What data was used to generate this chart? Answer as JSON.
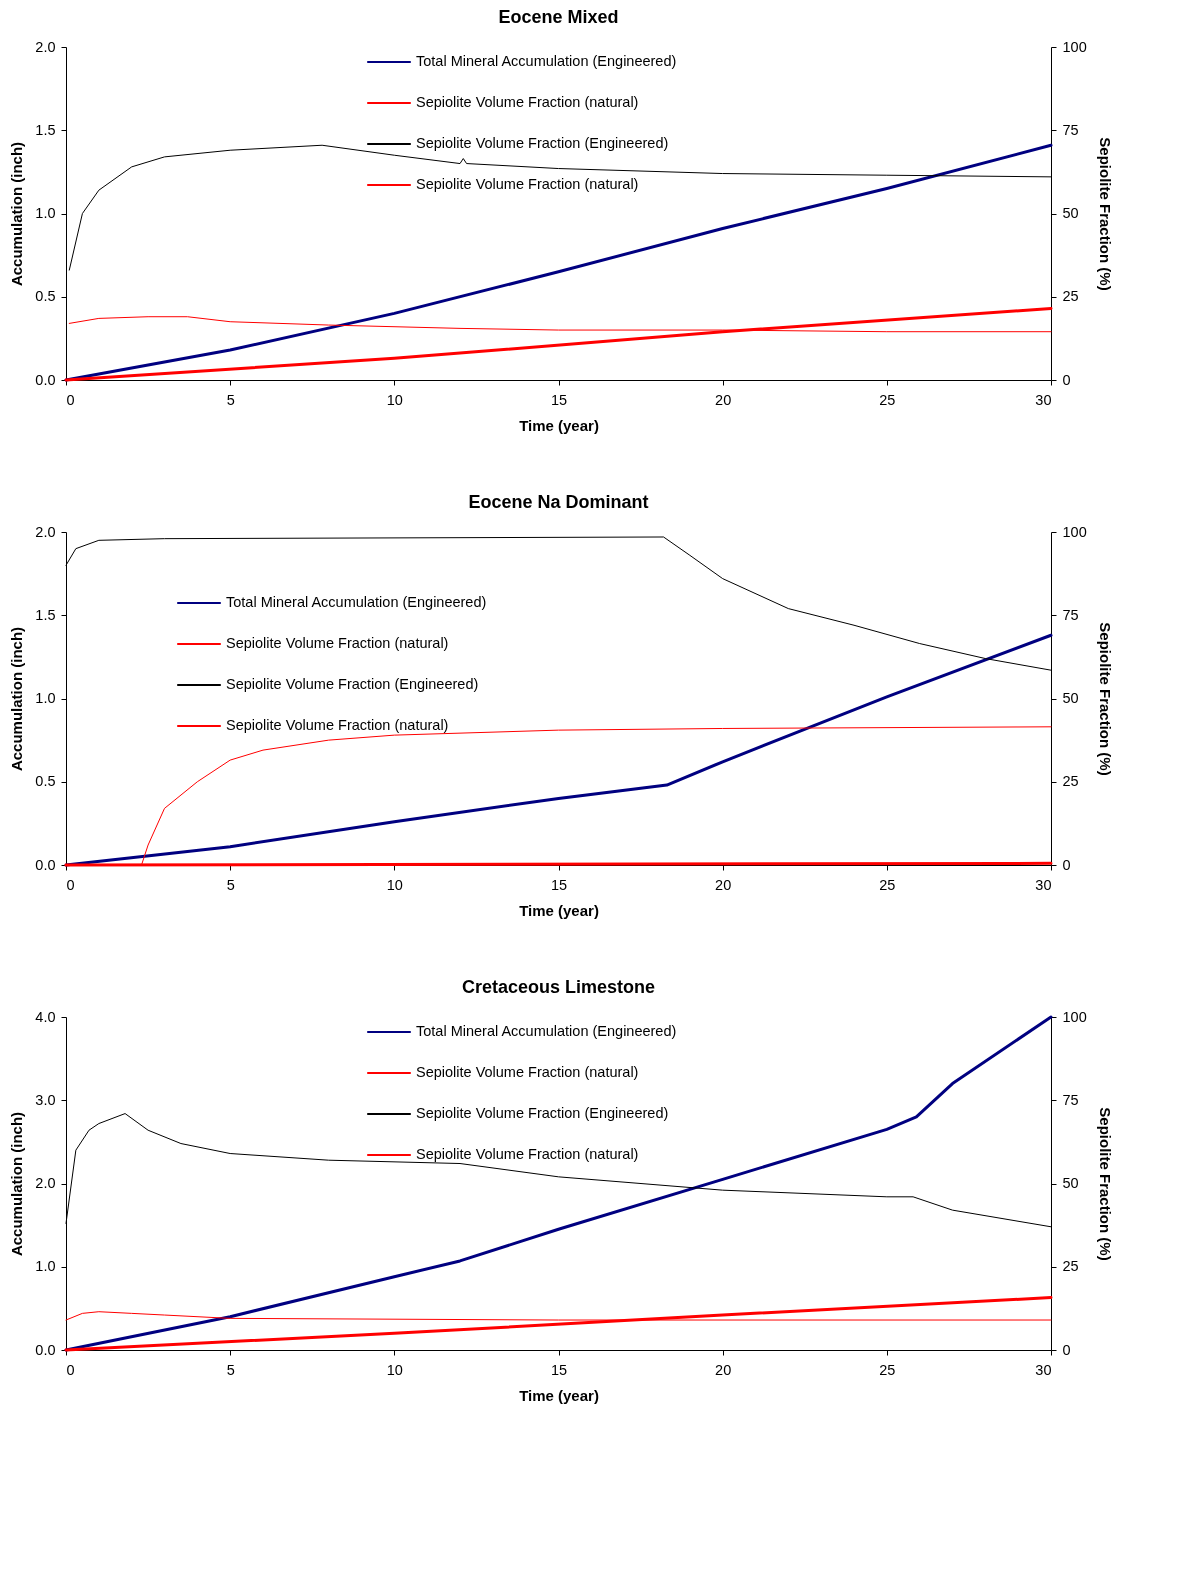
{
  "chart_data": [
    {
      "type": "line",
      "title": "Eocene Mixed",
      "xlabel": "Time (year)",
      "ylabel": "Accumulation (inch)",
      "y2label": "Sepiolite Fraction (%)",
      "legend": "top",
      "grid": false,
      "line_style": "solid",
      "marker": "none",
      "xlim": [
        0,
        30
      ],
      "xticks": [
        0,
        5,
        10,
        15,
        20,
        25,
        30
      ],
      "ylim": [
        0,
        2
      ],
      "yticks": [
        {
          "value": 0,
          "label": "0.0"
        },
        {
          "value": 0.5,
          "label": "0.5"
        },
        {
          "value": 1,
          "label": "1.0"
        },
        {
          "value": 1.5,
          "label": "1.5"
        },
        {
          "value": 2,
          "label": "2.0"
        }
      ],
      "y2lim": [
        0,
        100
      ],
      "y2ticks": [
        0,
        25,
        50,
        75,
        100
      ],
      "series": [
        {
          "name": "Total Mineral Accumulation (Engineered)",
          "color": "#000080",
          "x": [
            0,
            5,
            10,
            15,
            20,
            25,
            30
          ],
          "values": [
            0,
            0.18,
            0.4,
            0.65,
            0.91,
            1.15,
            1.41
          ]
        },
        {
          "name": "Sepiolite Volume Fraction (natural)",
          "color": "#ff0000",
          "x": [
            0,
            10,
            20,
            30
          ],
          "values": [
            0,
            0.13,
            0.29,
            0.43
          ]
        },
        {
          "name": "Sepiolite Volume Fraction (Engineered)",
          "color": "#000000",
          "axis": "y2",
          "x": [
            0.1,
            0.5,
            1,
            2,
            3,
            5,
            7.8,
            10,
            12,
            12.1,
            12.2,
            15,
            20,
            25,
            30
          ],
          "values": [
            33,
            50,
            57,
            64,
            67,
            69,
            70.5,
            67.5,
            65,
            66.5,
            65,
            63.5,
            62,
            61.5,
            61
          ]
        },
        {
          "name": "Sepiolite Volume Fraction (natural)",
          "color": "#ff0000",
          "axis": "y2",
          "x": [
            0.1,
            1,
            2.5,
            3.7,
            5,
            8,
            12,
            15,
            20,
            25,
            30
          ],
          "values": [
            17,
            18.5,
            19,
            19,
            17.5,
            16.5,
            15.5,
            15,
            15,
            14.5,
            14.5
          ]
        }
      ]
    },
    {
      "type": "line",
      "title": "Eocene Na Dominant",
      "xlabel": "Time (year)",
      "ylabel": "Accumulation (inch)",
      "y2label": "Sepiolite Fraction (%)",
      "legend": "top left",
      "grid": false,
      "line_style": "solid",
      "marker": "none",
      "xlim": [
        0,
        30
      ],
      "xticks": [
        0,
        5,
        10,
        15,
        20,
        25,
        30
      ],
      "ylim": [
        0,
        2
      ],
      "yticks": [
        {
          "value": 0,
          "label": "0.0"
        },
        {
          "value": 0.5,
          "label": "0.5"
        },
        {
          "value": 1,
          "label": "1.0"
        },
        {
          "value": 1.5,
          "label": "1.5"
        },
        {
          "value": 2,
          "label": "2.0"
        }
      ],
      "y2lim": [
        0,
        100
      ],
      "y2ticks": [
        0,
        25,
        50,
        75,
        100
      ],
      "series": [
        {
          "name": "Total Mineral Accumulation (Engineered)",
          "color": "#000080",
          "x": [
            0,
            5,
            10,
            15,
            18.3,
            20,
            25,
            30
          ],
          "values": [
            0,
            0.11,
            0.26,
            0.4,
            0.48,
            0.62,
            1.01,
            1.38
          ]
        },
        {
          "name": "Sepiolite Volume Fraction (natural)",
          "color": "#ff0000",
          "x": [
            0,
            30
          ],
          "values": [
            0,
            0.01
          ]
        },
        {
          "name": "Sepiolite Volume Fraction (Engineered)",
          "color": "#000000",
          "axis": "y2",
          "x": [
            0,
            0.3,
            1,
            3,
            18.2,
            19,
            20,
            22,
            24,
            26,
            28,
            30
          ],
          "values": [
            90,
            95,
            97.5,
            98,
            98.5,
            93,
            86,
            77,
            72,
            66.5,
            62,
            58.5
          ]
        },
        {
          "name": "Sepiolite Volume Fraction (natural)",
          "color": "#ff0000",
          "axis": "y2",
          "x": [
            0,
            2.3,
            2.5,
            3,
            4,
            5,
            6,
            8,
            10,
            15,
            20,
            30
          ],
          "values": [
            0,
            0,
            6,
            17,
            25,
            31.5,
            34.5,
            37.5,
            39,
            40.5,
            41,
            41.5
          ]
        }
      ]
    },
    {
      "type": "line",
      "title": "Cretaceous Limestone",
      "xlabel": "Time (year)",
      "ylabel": "Accumulation (inch)",
      "y2label": "Sepiolite Fraction (%)",
      "legend": "top",
      "grid": false,
      "line_style": "solid",
      "marker": "none",
      "xlim": [
        0,
        30
      ],
      "xticks": [
        0,
        5,
        10,
        15,
        20,
        25,
        30
      ],
      "ylim": [
        0,
        4
      ],
      "yticks": [
        {
          "value": 0,
          "label": "0.0"
        },
        {
          "value": 1,
          "label": "1.0"
        },
        {
          "value": 2,
          "label": "2.0"
        },
        {
          "value": 3,
          "label": "3.0"
        },
        {
          "value": 4,
          "label": "4.0"
        }
      ],
      "y2lim": [
        0,
        100
      ],
      "y2ticks": [
        0,
        25,
        50,
        75,
        100
      ],
      "series": [
        {
          "name": "Total Mineral Accumulation (Engineered)",
          "color": "#000080",
          "x": [
            0,
            5,
            10,
            12,
            15,
            20,
            25,
            25.9,
            27,
            30
          ],
          "values": [
            0,
            0.4,
            0.88,
            1.07,
            1.45,
            2.05,
            2.65,
            2.8,
            3.2,
            4
          ]
        },
        {
          "name": "Sepiolite Volume Fraction (natural)",
          "color": "#ff0000",
          "x": [
            0,
            10,
            20,
            30
          ],
          "values": [
            0,
            0.2,
            0.42,
            0.63
          ]
        },
        {
          "name": "Sepiolite Volume Fraction (Engineered)",
          "color": "#000000",
          "axis": "y2",
          "x": [
            0,
            0.3,
            0.7,
            1,
            1.8,
            2.5,
            3.5,
            5,
            8,
            12,
            15,
            20,
            25,
            25.8,
            27,
            30
          ],
          "values": [
            38,
            60,
            66,
            68,
            71,
            66,
            62,
            59,
            57,
            56,
            52,
            48,
            46,
            46,
            42,
            37
          ]
        },
        {
          "name": "Sepiolite Volume Fraction (natural)",
          "color": "#ff0000",
          "axis": "y2",
          "x": [
            0,
            0.5,
            1,
            2,
            3,
            5,
            15,
            30
          ],
          "values": [
            9,
            11,
            11.5,
            11,
            10.5,
            9.5,
            9,
            9
          ]
        }
      ]
    }
  ]
}
